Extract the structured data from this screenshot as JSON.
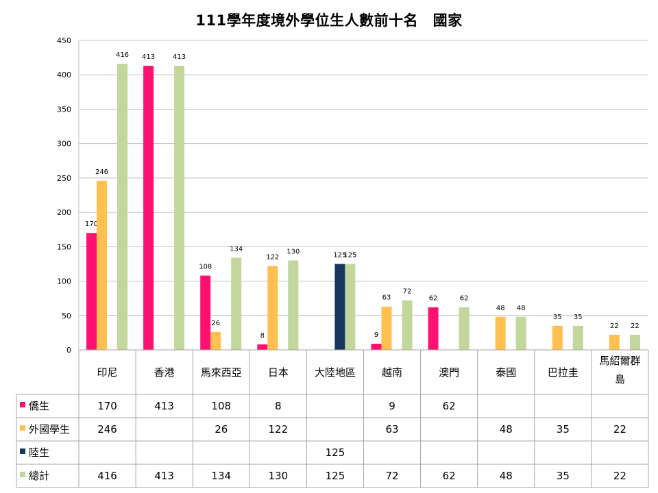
{
  "title": "111學年度境外學位生人數前十名　國家",
  "chart_data": {
    "type": "bar",
    "title": "111學年度境外學位生人數前十名　國家",
    "categories": [
      "印尼",
      "香港",
      "馬來西亞",
      "日本",
      "大陸地區",
      "越南",
      "澳門",
      "泰國",
      "巴拉圭",
      "馬紹爾群島"
    ],
    "category_lines": [
      [
        "印尼"
      ],
      [
        "香港"
      ],
      [
        "馬來西亞"
      ],
      [
        "日本"
      ],
      [
        "大陸地區"
      ],
      [
        "越南"
      ],
      [
        "澳門"
      ],
      [
        "泰國"
      ],
      [
        "巴拉圭"
      ],
      [
        "馬紹爾群",
        "島"
      ]
    ],
    "series": [
      {
        "name": "僑生",
        "color": "#FF1171",
        "values": [
          170,
          413,
          108,
          8,
          null,
          9,
          62,
          null,
          null,
          null
        ]
      },
      {
        "name": "外國學生",
        "color": "#FFC04F",
        "values": [
          246,
          null,
          26,
          122,
          null,
          63,
          null,
          48,
          35,
          22
        ]
      },
      {
        "name": "陸生",
        "color": "#17375E",
        "values": [
          null,
          null,
          null,
          null,
          125,
          null,
          null,
          null,
          null,
          null
        ]
      },
      {
        "name": "總計",
        "color": "#C3D69B",
        "values": [
          416,
          413,
          134,
          130,
          125,
          72,
          62,
          48,
          35,
          22
        ]
      }
    ],
    "yticks": [
      0,
      50,
      100,
      150,
      200,
      250,
      300,
      350,
      400,
      450
    ],
    "ylim": [
      0,
      450
    ],
    "grid": true,
    "legend": "data-table"
  }
}
